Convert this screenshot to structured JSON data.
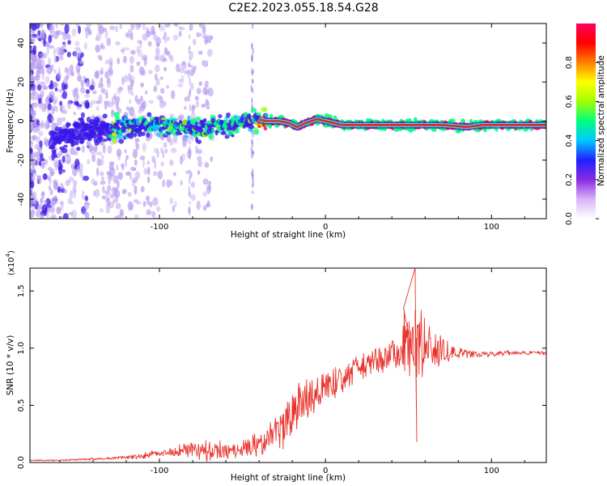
{
  "title": "C2E2.2023.055.18.54.G28",
  "colors": {
    "snr_line": "#e8322c",
    "axis": "#000000",
    "spectrogram_ridge": "#e4252a",
    "spectrogram_halo": "#25e6d0",
    "spectrogram_core_cloud": "#3a18e8",
    "spectrogram_noise": "#b89bf0"
  },
  "colorbar": {
    "label": "Normalized spectral amplitude",
    "range": [
      0,
      1
    ],
    "ticks": [
      "0.0",
      "0.2",
      "0.4",
      "0.6",
      "0.8"
    ],
    "colormap": [
      "#ffffff",
      "#d8b4f8",
      "#8a2be2",
      "#2020ff",
      "#00c8ff",
      "#00ff80",
      "#a0ff00",
      "#ffff00",
      "#ff8000",
      "#ff0000",
      "#ff0060"
    ]
  },
  "chart_data": [
    {
      "type": "heatmap",
      "xlabel": "Height of straight line (km)",
      "ylabel": "Frequency (Hz)",
      "xlim": [
        -178,
        133
      ],
      "ylim": [
        -50,
        50
      ],
      "xticks": [
        -100,
        0,
        100
      ],
      "xtick_labels": [
        "-100",
        "0",
        "100"
      ],
      "yticks": [
        -40,
        -20,
        0,
        20,
        40
      ],
      "ytick_labels": [
        "-40",
        "-20",
        "0",
        "20",
        "40"
      ],
      "ridge": {
        "x": [
          -178,
          -140,
          -120,
          -100,
          -85,
          -75,
          -60,
          -50,
          -42,
          -35,
          -28,
          -22,
          -17,
          -12,
          -5,
          0,
          10,
          30,
          50,
          70,
          85,
          95,
          110,
          133
        ],
        "frequency": [
          -12,
          -5,
          -3,
          -2,
          -3,
          -5,
          -2,
          -1,
          1,
          0,
          0,
          -1,
          -3,
          -1,
          1,
          0,
          -2,
          -2,
          -2,
          -2,
          -3,
          -2,
          -2,
          -2
        ]
      },
      "ridge_colormap_value_estimate": [
        {
          "x": [
            -178,
            -130
          ],
          "value": 0.15
        },
        {
          "x": [
            -130,
            -40
          ],
          "value": 0.45
        },
        {
          "x": [
            -40,
            133
          ],
          "value": 0.9
        }
      ],
      "vertical_features_x": [
        -82,
        -44
      ]
    },
    {
      "type": "line",
      "xlabel": "Height of straight line (km)",
      "ylabel": "SNR (10 * v/v)",
      "scale_note": "(x10",
      "scale_exponent": "4",
      "xlim": [
        -178,
        133
      ],
      "ylim": [
        0,
        1.7
      ],
      "xticks": [
        -100,
        0,
        100
      ],
      "xtick_labels": [
        "-100",
        "0",
        "100"
      ],
      "yticks": [
        0,
        0.5,
        1.0,
        1.5
      ],
      "ytick_labels": [
        "0.0",
        "0.5",
        "1.0",
        "1.5"
      ],
      "series": [
        {
          "x": [
            -178,
            -160,
            -140,
            -125,
            -110,
            -100,
            -90,
            -80,
            -70,
            -60,
            -50,
            -40,
            -30,
            -25,
            -20,
            -15,
            -10,
            -5,
            0,
            10,
            20,
            30,
            40,
            45,
            50,
            55,
            60,
            65,
            70,
            75,
            80,
            90,
            100,
            110,
            120,
            133
          ],
          "y": [
            0.02,
            0.02,
            0.03,
            0.04,
            0.06,
            0.08,
            0.1,
            0.12,
            0.11,
            0.1,
            0.12,
            0.16,
            0.25,
            0.32,
            0.42,
            0.52,
            0.55,
            0.6,
            0.65,
            0.72,
            0.82,
            0.9,
            0.95,
            1.0,
            1.05,
            1.05,
            1.0,
            1.0,
            0.98,
            0.97,
            0.96,
            0.95,
            0.95,
            0.96,
            0.96,
            0.96
          ],
          "amp": [
            0.005,
            0.006,
            0.008,
            0.01,
            0.02,
            0.025,
            0.04,
            0.07,
            0.08,
            0.07,
            0.06,
            0.1,
            0.16,
            0.15,
            0.15,
            0.14,
            0.13,
            0.13,
            0.12,
            0.12,
            0.11,
            0.1,
            0.11,
            0.18,
            0.28,
            0.3,
            0.22,
            0.14,
            0.12,
            0.07,
            0.04,
            0.025,
            0.02,
            0.02,
            0.015,
            0.015
          ]
        }
      ],
      "notable_points": [
        {
          "x": 54,
          "y": 1.7
        },
        {
          "x": 55,
          "y": 0.18
        },
        {
          "x": 47,
          "y": 1.35
        }
      ]
    }
  ]
}
